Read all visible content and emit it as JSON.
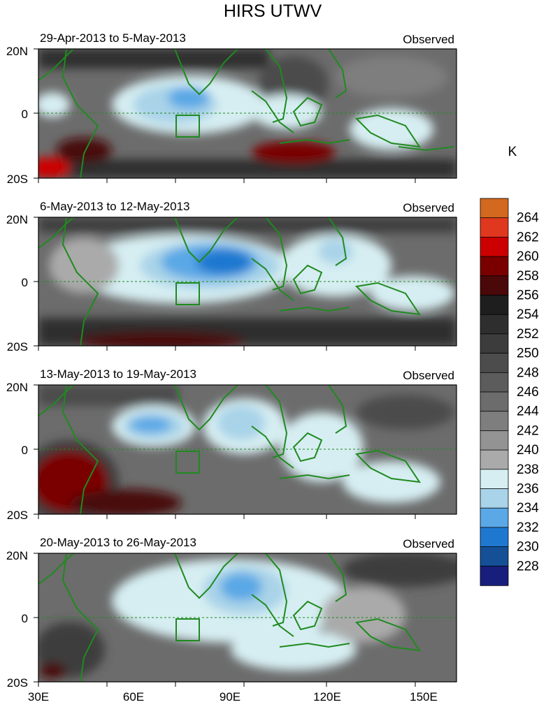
{
  "title": "HIRS UTWV",
  "unit_label": "K",
  "panels": [
    {
      "period": "29-Apr-2013 to 5-May-2013",
      "tag": "Observed"
    },
    {
      "period": "6-May-2013 to 12-May-2013",
      "tag": "Observed"
    },
    {
      "period": "13-May-2013 to 19-May-2013",
      "tag": "Observed"
    },
    {
      "period": "20-May-2013 to 26-May-2013",
      "tag": "Observed"
    }
  ],
  "lat_ticks": [
    "20N",
    "0",
    "20S"
  ],
  "lon_ticks": [
    "30E",
    "60E",
    "90E",
    "120E",
    "150E"
  ],
  "colorbar": {
    "labels": [
      "264",
      "262",
      "260",
      "258",
      "256",
      "254",
      "252",
      "250",
      "248",
      "246",
      "244",
      "242",
      "240",
      "238",
      "236",
      "234",
      "232",
      "230",
      "228"
    ],
    "colors": [
      "#d2691e",
      "#e0381e",
      "#cc0000",
      "#7a0000",
      "#4a0808",
      "#1e1e1e",
      "#2e2e2e",
      "#3c3c3c",
      "#4c4c4c",
      "#5c5c5c",
      "#6c6c6c",
      "#7e7e7e",
      "#939393",
      "#aaaaaa",
      "#d6eef2",
      "#a9d3e8",
      "#5aa8e6",
      "#1f78d0",
      "#154f96",
      "#181e7c"
    ]
  },
  "map_colors": {
    "coast": "#1f8a1f",
    "equator_line": "#1f8a1f"
  }
}
